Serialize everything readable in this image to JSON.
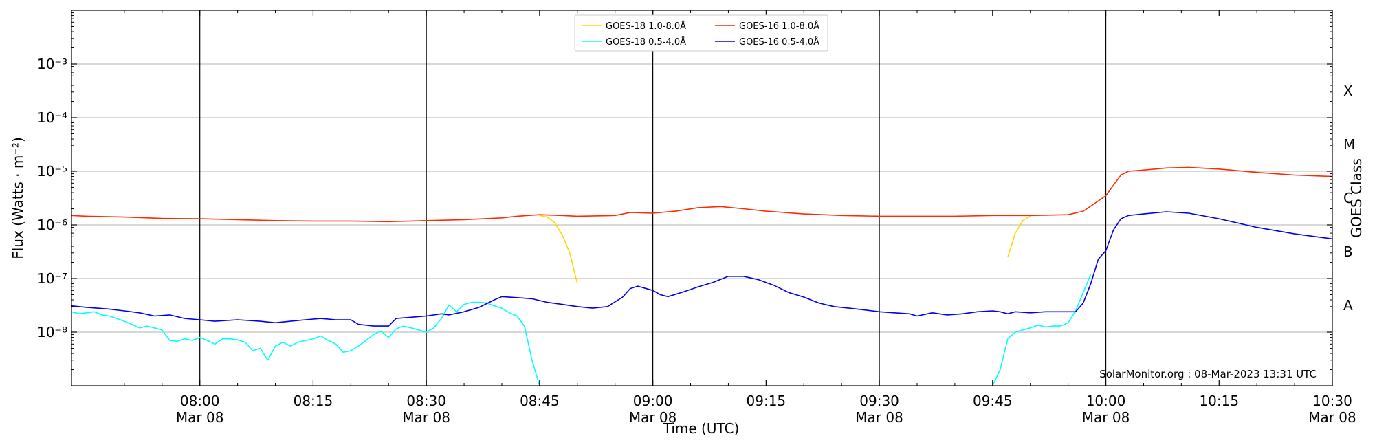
{
  "chart_data": {
    "type": "line",
    "xlabel": "Time (UTC)",
    "ylabel": "Flux (Watts · m⁻²)",
    "right_label": "GOES Class",
    "credit": "SolarMonitor.org : 08-Mar-2023 13:31 UTC",
    "ylim": [
      1e-09,
      0.01
    ],
    "yscale": "log",
    "xlim": [
      "07:43",
      "10:30"
    ],
    "grid": "horizontal at decades",
    "legend_position": "top-center",
    "y_ticks": [
      {
        "value": 1e-08,
        "label": "10⁻⁸"
      },
      {
        "value": 1e-07,
        "label": "10⁻⁷"
      },
      {
        "value": 1e-06,
        "label": "10⁻⁶"
      },
      {
        "value": 1e-05,
        "label": "10⁻⁵"
      },
      {
        "value": 0.0001,
        "label": "10⁻⁴"
      },
      {
        "value": 0.001,
        "label": "10⁻³"
      }
    ],
    "x_ticks": [
      {
        "time": "08:00",
        "label": "08:00",
        "sub": "Mar 08",
        "major": true
      },
      {
        "time": "08:15",
        "label": "08:15",
        "sub": "",
        "major": false
      },
      {
        "time": "08:30",
        "label": "08:30",
        "sub": "Mar 08",
        "major": true
      },
      {
        "time": "08:45",
        "label": "08:45",
        "sub": "",
        "major": false
      },
      {
        "time": "09:00",
        "label": "09:00",
        "sub": "Mar 08",
        "major": true
      },
      {
        "time": "09:15",
        "label": "09:15",
        "sub": "",
        "major": false
      },
      {
        "time": "09:30",
        "label": "09:30",
        "sub": "Mar 08",
        "major": true
      },
      {
        "time": "09:45",
        "label": "09:45",
        "sub": "",
        "major": false
      },
      {
        "time": "10:00",
        "label": "10:00",
        "sub": "Mar 08",
        "major": true
      },
      {
        "time": "10:15",
        "label": "10:15",
        "sub": "",
        "major": false
      },
      {
        "time": "10:30",
        "label": "10:30",
        "sub": "Mar 08",
        "major": false
      }
    ],
    "goes_classes": [
      {
        "label": "A",
        "value": 3.16e-08
      },
      {
        "label": "B",
        "value": 3.16e-07
      },
      {
        "label": "C",
        "value": 3.16e-06
      },
      {
        "label": "M",
        "value": 3.16e-05
      },
      {
        "label": "X",
        "value": 0.000316
      }
    ],
    "series": [
      {
        "name": "GOES-18 1.0-8.0Å",
        "color": "#ffd700",
        "points": [
          [
            "08:45",
            1.5e-06
          ],
          [
            "08:46",
            1.4e-06
          ],
          [
            "08:47",
            1.1e-06
          ],
          [
            "08:48",
            6.5e-07
          ],
          [
            "08:49",
            3e-07
          ],
          [
            "08:50",
            8e-08
          ],
          null,
          [
            "09:47",
            2.5e-07
          ],
          [
            "09:48",
            7e-07
          ],
          [
            "09:49",
            1.2e-06
          ],
          [
            "09:50",
            1.45e-06
          ]
        ]
      },
      {
        "name": "GOES-18 0.5-4.0Å",
        "color": "#00ffff",
        "points": [
          [
            "07:43",
            2.4e-08
          ],
          [
            "07:44",
            2.2e-08
          ],
          [
            "07:45",
            2.3e-08
          ],
          [
            "07:46",
            2.4e-08
          ],
          [
            "07:47",
            2.1e-08
          ],
          [
            "07:48",
            2e-08
          ],
          [
            "07:49",
            1.8e-08
          ],
          [
            "07:50",
            1.6e-08
          ],
          [
            "07:51",
            1.4e-08
          ],
          [
            "07:52",
            1.2e-08
          ],
          [
            "07:53",
            1.3e-08
          ],
          [
            "07:54",
            1.2e-08
          ],
          [
            "07:55",
            1.1e-08
          ],
          [
            "07:56",
            7e-09
          ],
          [
            "07:57",
            6.8e-09
          ],
          [
            "07:58",
            7.5e-09
          ],
          [
            "07:59",
            7e-09
          ],
          [
            "08:00",
            8e-09
          ],
          [
            "08:01",
            7e-09
          ],
          [
            "08:02",
            6e-09
          ],
          [
            "08:03",
            7.5e-09
          ],
          [
            "08:04",
            7.5e-09
          ],
          [
            "08:05",
            7.2e-09
          ],
          [
            "08:06",
            6.5e-09
          ],
          [
            "08:07",
            4.5e-09
          ],
          [
            "08:08",
            5e-09
          ],
          [
            "08:09",
            3e-09
          ],
          [
            "08:10",
            5.5e-09
          ],
          [
            "08:11",
            6.5e-09
          ],
          [
            "08:12",
            5.5e-09
          ],
          [
            "08:13",
            6.5e-09
          ],
          [
            "08:14",
            7e-09
          ],
          [
            "08:15",
            7.5e-09
          ],
          [
            "08:16",
            8.5e-09
          ],
          [
            "08:17",
            7e-09
          ],
          [
            "08:18",
            6e-09
          ],
          [
            "08:19",
            4.2e-09
          ],
          [
            "08:20",
            4.5e-09
          ],
          [
            "08:21",
            5.5e-09
          ],
          [
            "08:22",
            7e-09
          ],
          [
            "08:23",
            9e-09
          ],
          [
            "08:24",
            1.05e-08
          ],
          [
            "08:25",
            8e-09
          ],
          [
            "08:26",
            1.15e-08
          ],
          [
            "08:27",
            1.3e-08
          ],
          [
            "08:28",
            1.2e-08
          ],
          [
            "08:29",
            1.1e-08
          ],
          [
            "08:30",
            1e-08
          ],
          [
            "08:31",
            1.2e-08
          ],
          [
            "08:32",
            1.8e-08
          ],
          [
            "08:33",
            3.2e-08
          ],
          [
            "08:34",
            2.4e-08
          ],
          [
            "08:35",
            3.3e-08
          ],
          [
            "08:36",
            3.6e-08
          ],
          [
            "08:37",
            3.6e-08
          ],
          [
            "08:38",
            3.5e-08
          ],
          [
            "08:39",
            3.1e-08
          ],
          [
            "08:40",
            2.8e-08
          ],
          [
            "08:41",
            2.3e-08
          ],
          [
            "08:42",
            2e-08
          ],
          [
            "08:43",
            1.3e-08
          ],
          [
            "08:44",
            3e-09
          ],
          [
            "08:45",
            1e-09
          ]
        ],
        "points_b": [
          [
            "09:45",
            1e-09
          ],
          [
            "09:46",
            2e-09
          ],
          [
            "09:47",
            7.5e-09
          ],
          [
            "09:48",
            1e-08
          ],
          [
            "09:49",
            1.1e-08
          ],
          [
            "09:50",
            1.2e-08
          ],
          [
            "09:51",
            1.35e-08
          ],
          [
            "09:52",
            1.25e-08
          ],
          [
            "09:53",
            1.3e-08
          ],
          [
            "09:54",
            1.3e-08
          ],
          [
            "09:55",
            1.5e-08
          ],
          [
            "09:56",
            2.5e-08
          ],
          [
            "09:57",
            5.5e-08
          ],
          [
            "09:58",
            1.2e-07
          ]
        ]
      },
      {
        "name": "GOES-16 1.0-8.0Å",
        "color": "#ff2a00",
        "points": [
          [
            "07:43",
            1.5e-06
          ],
          [
            "07:45",
            1.45e-06
          ],
          [
            "07:50",
            1.4e-06
          ],
          [
            "07:55",
            1.32e-06
          ],
          [
            "08:00",
            1.3e-06
          ],
          [
            "08:05",
            1.25e-06
          ],
          [
            "08:10",
            1.2e-06
          ],
          [
            "08:15",
            1.18e-06
          ],
          [
            "08:20",
            1.18e-06
          ],
          [
            "08:25",
            1.15e-06
          ],
          [
            "08:28",
            1.18e-06
          ],
          [
            "08:30",
            1.2e-06
          ],
          [
            "08:35",
            1.25e-06
          ],
          [
            "08:40",
            1.35e-06
          ],
          [
            "08:42",
            1.45e-06
          ],
          [
            "08:45",
            1.55e-06
          ],
          [
            "08:48",
            1.5e-06
          ],
          [
            "08:50",
            1.45e-06
          ],
          [
            "08:55",
            1.5e-06
          ],
          [
            "08:57",
            1.7e-06
          ],
          [
            "09:00",
            1.65e-06
          ],
          [
            "09:03",
            1.8e-06
          ],
          [
            "09:06",
            2.1e-06
          ],
          [
            "09:09",
            2.2e-06
          ],
          [
            "09:12",
            2e-06
          ],
          [
            "09:15",
            1.8e-06
          ],
          [
            "09:20",
            1.6e-06
          ],
          [
            "09:25",
            1.5e-06
          ],
          [
            "09:30",
            1.45e-06
          ],
          [
            "09:35",
            1.45e-06
          ],
          [
            "09:40",
            1.45e-06
          ],
          [
            "09:45",
            1.5e-06
          ],
          [
            "09:50",
            1.5e-06
          ],
          [
            "09:55",
            1.55e-06
          ],
          [
            "09:57",
            1.8e-06
          ],
          [
            "09:59",
            2.8e-06
          ],
          [
            "10:00",
            3.5e-06
          ],
          [
            "10:01",
            5.5e-06
          ],
          [
            "10:02",
            8.5e-06
          ],
          [
            "10:03",
            1e-05
          ],
          [
            "10:05",
            1.05e-05
          ],
          [
            "10:08",
            1.15e-05
          ],
          [
            "10:11",
            1.18e-05
          ],
          [
            "10:15",
            1.1e-05
          ],
          [
            "10:20",
            9.5e-06
          ],
          [
            "10:25",
            8.5e-06
          ],
          [
            "10:30",
            8e-06
          ]
        ]
      },
      {
        "name": "GOES-16 0.5-4.0Å",
        "color": "#0000ee",
        "points": [
          [
            "07:43",
            3.1e-08
          ],
          [
            "07:45",
            2.9e-08
          ],
          [
            "07:48",
            2.7e-08
          ],
          [
            "07:50",
            2.5e-08
          ],
          [
            "07:52",
            2.3e-08
          ],
          [
            "07:54",
            2e-08
          ],
          [
            "07:56",
            2.1e-08
          ],
          [
            "07:58",
            1.8e-08
          ],
          [
            "08:00",
            1.7e-08
          ],
          [
            "08:02",
            1.6e-08
          ],
          [
            "08:05",
            1.7e-08
          ],
          [
            "08:08",
            1.6e-08
          ],
          [
            "08:10",
            1.5e-08
          ],
          [
            "08:12",
            1.6e-08
          ],
          [
            "08:14",
            1.7e-08
          ],
          [
            "08:16",
            1.8e-08
          ],
          [
            "08:18",
            1.7e-08
          ],
          [
            "08:20",
            1.7e-08
          ],
          [
            "08:21",
            1.4e-08
          ],
          [
            "08:23",
            1.3e-08
          ],
          [
            "08:25",
            1.3e-08
          ],
          [
            "08:26",
            1.8e-08
          ],
          [
            "08:28",
            1.9e-08
          ],
          [
            "08:30",
            2e-08
          ],
          [
            "08:32",
            2.2e-08
          ],
          [
            "08:33",
            2.1e-08
          ],
          [
            "08:35",
            2.4e-08
          ],
          [
            "08:37",
            2.9e-08
          ],
          [
            "08:39",
            4e-08
          ],
          [
            "08:40",
            4.6e-08
          ],
          [
            "08:42",
            4.4e-08
          ],
          [
            "08:44",
            4.2e-08
          ],
          [
            "08:46",
            3.6e-08
          ],
          [
            "08:48",
            3.3e-08
          ],
          [
            "08:50",
            3e-08
          ],
          [
            "08:52",
            2.8e-08
          ],
          [
            "08:54",
            3e-08
          ],
          [
            "08:56",
            4.5e-08
          ],
          [
            "08:57",
            6.5e-08
          ],
          [
            "08:58",
            7.2e-08
          ],
          [
            "09:00",
            6e-08
          ],
          [
            "09:01",
            5e-08
          ],
          [
            "09:02",
            4.6e-08
          ],
          [
            "09:04",
            5.6e-08
          ],
          [
            "09:06",
            7e-08
          ],
          [
            "09:08",
            8.5e-08
          ],
          [
            "09:10",
            1.1e-07
          ],
          [
            "09:12",
            1.1e-07
          ],
          [
            "09:14",
            9.5e-08
          ],
          [
            "09:16",
            7.5e-08
          ],
          [
            "09:18",
            5.5e-08
          ],
          [
            "09:20",
            4.5e-08
          ],
          [
            "09:22",
            3.5e-08
          ],
          [
            "09:24",
            3e-08
          ],
          [
            "09:26",
            2.8e-08
          ],
          [
            "09:28",
            2.6e-08
          ],
          [
            "09:30",
            2.4e-08
          ],
          [
            "09:32",
            2.3e-08
          ],
          [
            "09:34",
            2.2e-08
          ],
          [
            "09:35",
            2e-08
          ],
          [
            "09:37",
            2.3e-08
          ],
          [
            "09:39",
            2.1e-08
          ],
          [
            "09:41",
            2.2e-08
          ],
          [
            "09:43",
            2.4e-08
          ],
          [
            "09:45",
            2.5e-08
          ],
          [
            "09:46",
            2.4e-08
          ],
          [
            "09:47",
            2.2e-08
          ],
          [
            "09:48",
            2.4e-08
          ],
          [
            "09:50",
            2.3e-08
          ],
          [
            "09:52",
            2.4e-08
          ],
          [
            "09:54",
            2.4e-08
          ],
          [
            "09:56",
            2.4e-08
          ],
          [
            "09:57",
            3.5e-08
          ],
          [
            "09:58",
            8e-08
          ],
          [
            "09:59",
            2.3e-07
          ],
          [
            "10:00",
            3.3e-07
          ],
          [
            "10:01",
            8e-07
          ],
          [
            "10:02",
            1.3e-06
          ],
          [
            "10:03",
            1.5e-06
          ],
          [
            "10:05",
            1.6e-06
          ],
          [
            "10:08",
            1.75e-06
          ],
          [
            "10:11",
            1.65e-06
          ],
          [
            "10:15",
            1.3e-06
          ],
          [
            "10:20",
            9e-07
          ],
          [
            "10:25",
            6.8e-07
          ],
          [
            "10:30",
            5.5e-07
          ]
        ]
      }
    ]
  }
}
